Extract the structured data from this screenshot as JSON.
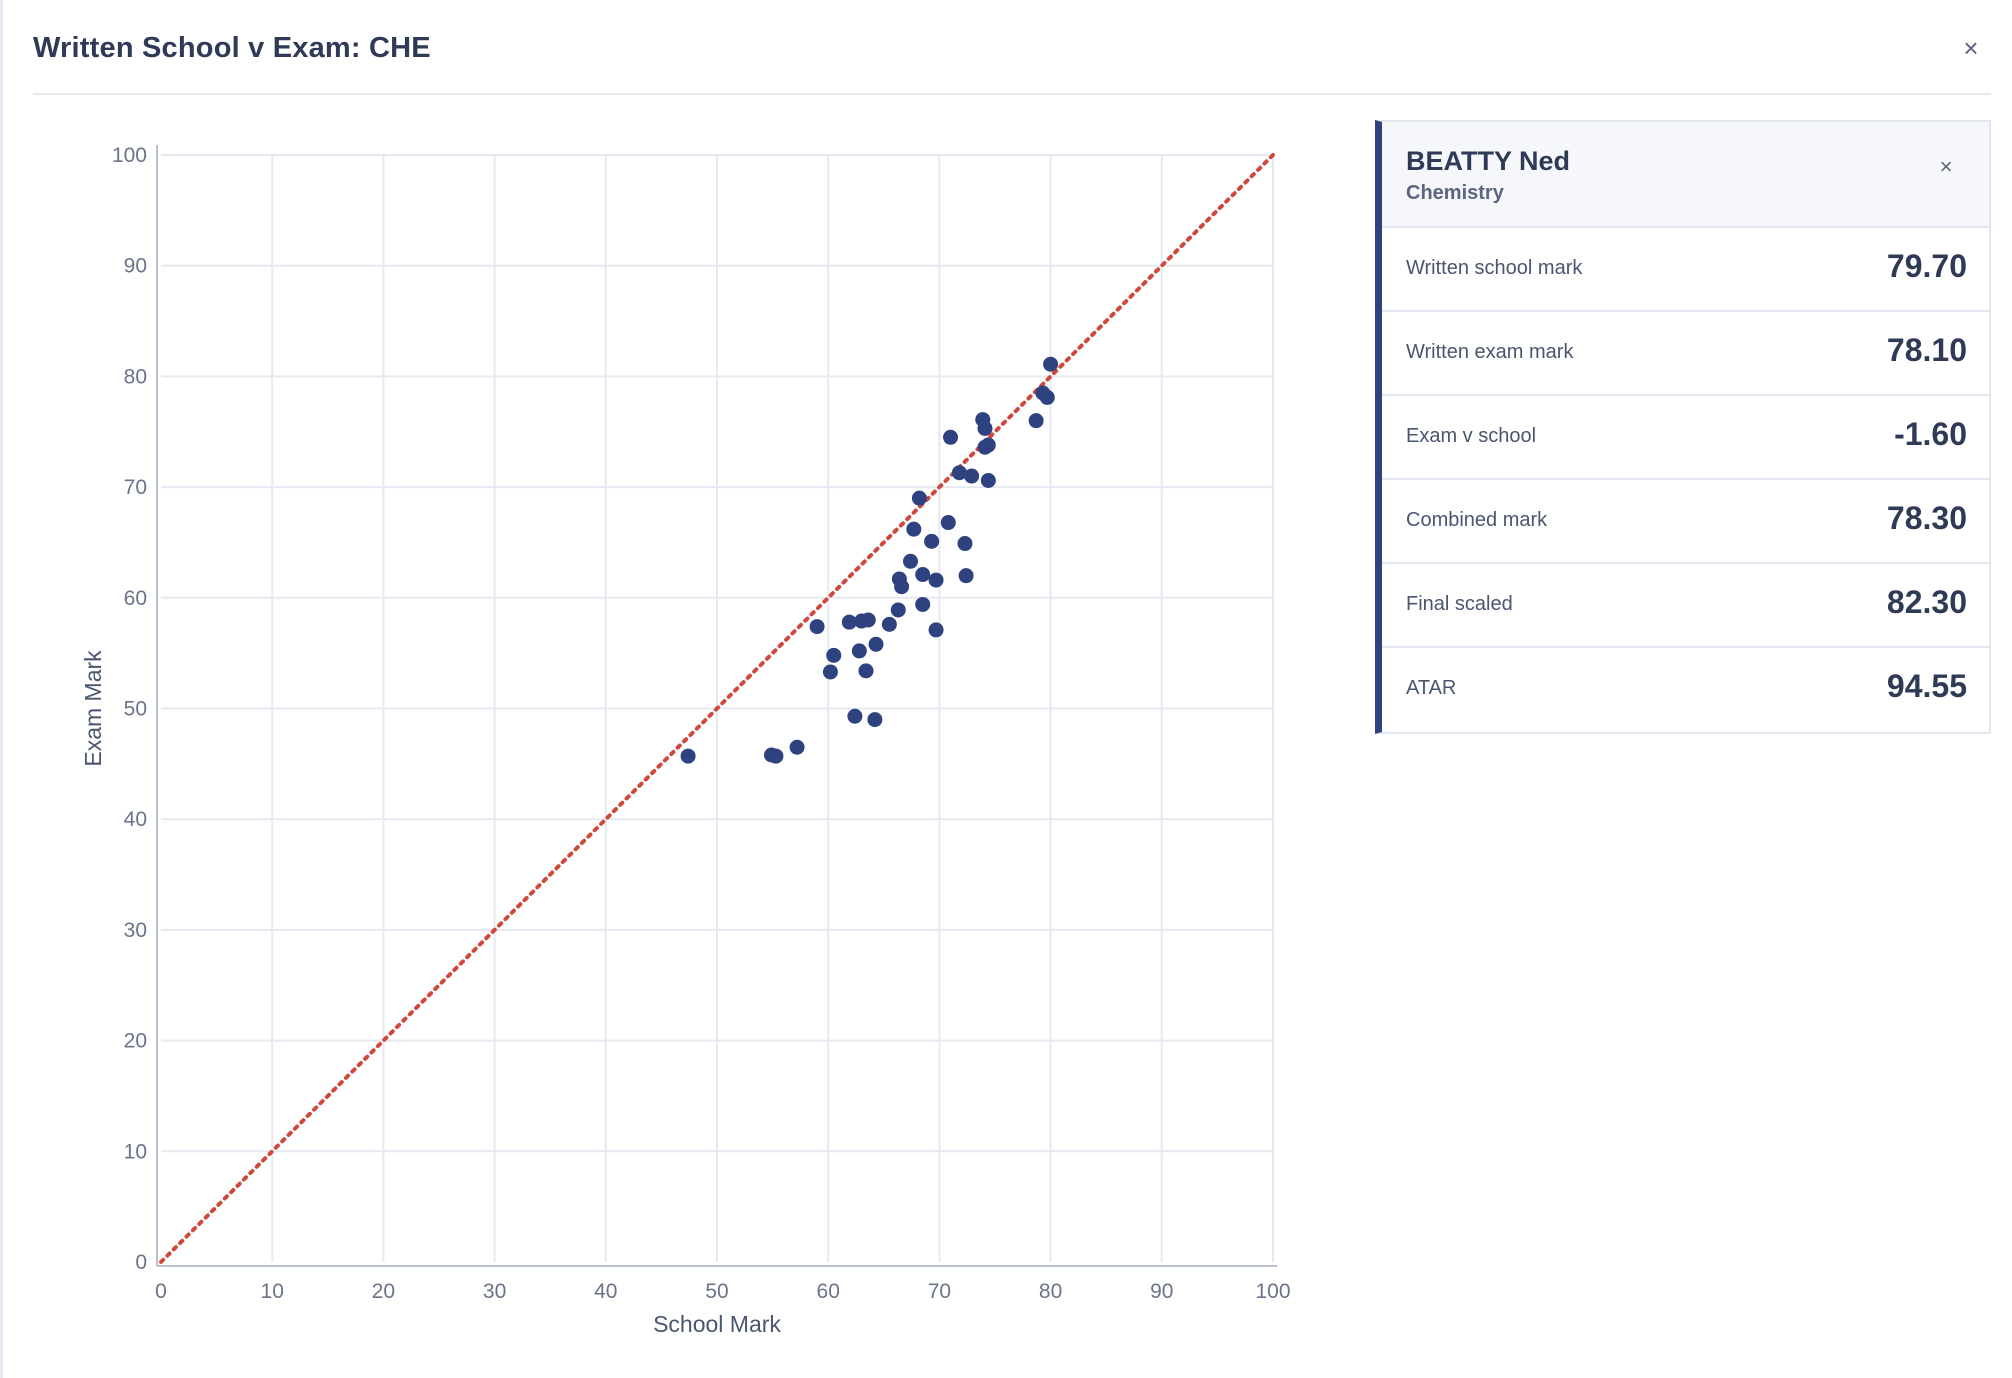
{
  "modal": {
    "title": "Written School v Exam: CHE",
    "close_glyph": "×"
  },
  "chart_data": {
    "type": "scatter",
    "title": "",
    "xlabel": "School Mark",
    "ylabel": "Exam Mark",
    "xlim": [
      0,
      100
    ],
    "ylim": [
      0,
      100
    ],
    "x_ticks": [
      0,
      10,
      20,
      30,
      40,
      50,
      60,
      70,
      80,
      90,
      100
    ],
    "y_ticks": [
      0,
      10,
      20,
      30,
      40,
      50,
      60,
      70,
      80,
      90,
      100
    ],
    "grid": true,
    "reference_line": {
      "x": [
        0,
        100
      ],
      "y": [
        0,
        100
      ],
      "style": "dotted",
      "color": "#d0483c"
    },
    "point_color": "#2f4280",
    "series": [
      {
        "points": [
          [
            47.4,
            45.7
          ],
          [
            54.9,
            45.8
          ],
          [
            55.3,
            45.7
          ],
          [
            57.2,
            46.5
          ],
          [
            59.0,
            57.4
          ],
          [
            60.2,
            53.3
          ],
          [
            60.5,
            54.8
          ],
          [
            61.9,
            57.8
          ],
          [
            62.4,
            49.3
          ],
          [
            62.8,
            55.2
          ],
          [
            63.0,
            57.9
          ],
          [
            63.4,
            53.4
          ],
          [
            63.6,
            58.0
          ],
          [
            64.2,
            49.0
          ],
          [
            64.3,
            55.8
          ],
          [
            65.5,
            57.6
          ],
          [
            66.3,
            58.9
          ],
          [
            66.4,
            61.7
          ],
          [
            66.6,
            61.0
          ],
          [
            67.4,
            63.3
          ],
          [
            67.7,
            66.2
          ],
          [
            68.2,
            69.0
          ],
          [
            68.5,
            62.1
          ],
          [
            68.5,
            59.4
          ],
          [
            69.3,
            65.1
          ],
          [
            69.7,
            57.1
          ],
          [
            69.7,
            61.6
          ],
          [
            70.8,
            66.8
          ],
          [
            71.0,
            74.5
          ],
          [
            71.8,
            71.3
          ],
          [
            72.3,
            64.9
          ],
          [
            72.4,
            62.0
          ],
          [
            72.9,
            71.0
          ],
          [
            73.9,
            76.1
          ],
          [
            74.1,
            75.3
          ],
          [
            74.1,
            73.6
          ],
          [
            74.4,
            73.8
          ],
          [
            74.4,
            70.6
          ],
          [
            78.7,
            76.0
          ],
          [
            79.3,
            78.5
          ],
          [
            79.7,
            78.1
          ],
          [
            80.0,
            81.1
          ]
        ]
      }
    ]
  },
  "student_panel": {
    "name": "BEATTY Ned",
    "subject": "Chemistry",
    "close_glyph": "×",
    "rows": [
      {
        "label": "Written school mark",
        "value": "79.70"
      },
      {
        "label": "Written exam mark",
        "value": "78.10"
      },
      {
        "label": "Exam v school",
        "value": "-1.60"
      },
      {
        "label": "Combined mark",
        "value": "78.30"
      },
      {
        "label": "Final scaled",
        "value": "82.30"
      },
      {
        "label": "ATAR",
        "value": "94.55"
      }
    ]
  }
}
